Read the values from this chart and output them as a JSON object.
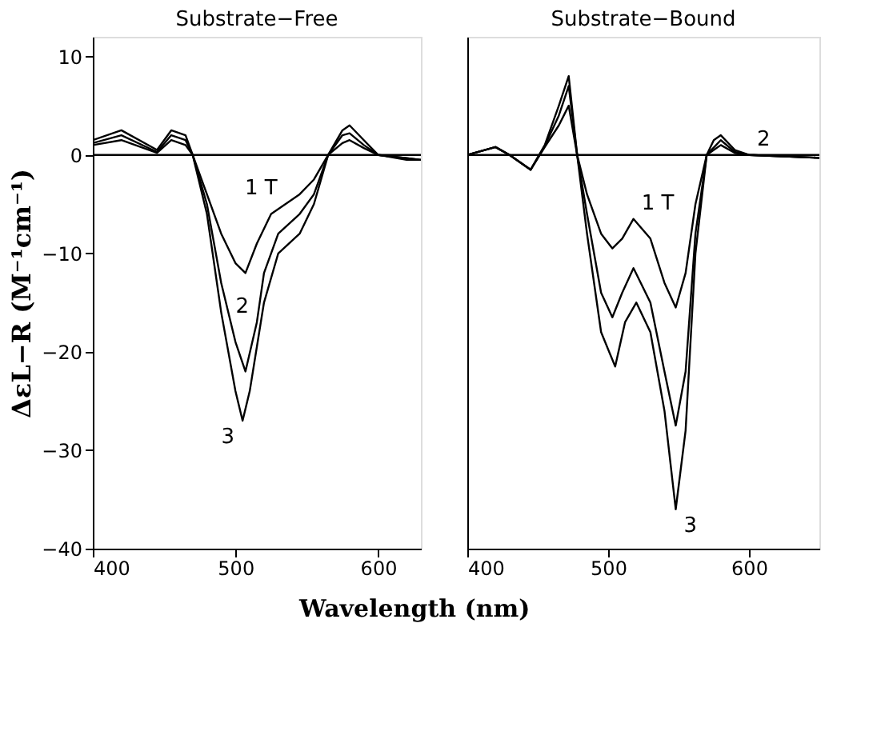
{
  "chart_data": [
    {
      "type": "line",
      "title": "Substrate−Free",
      "xlabel": "Wavelength (nm)",
      "ylabel": "ΔεL−R (M⁻¹cm⁻¹)",
      "xlim": [
        400,
        630
      ],
      "xticks": [
        400,
        500,
        600
      ],
      "ylim": [
        -40,
        12
      ],
      "yticks": [
        -40,
        -30,
        -20,
        -10,
        0,
        10
      ],
      "grid": false,
      "legend": false,
      "series": [
        {
          "name": "1 T",
          "color": "#000000",
          "x": [
            400,
            420,
            445,
            455,
            465,
            470,
            480,
            490,
            500,
            507,
            515,
            525,
            535,
            545,
            555,
            565,
            575,
            580,
            590,
            600,
            630
          ],
          "values": [
            1,
            1.5,
            0.2,
            1.5,
            1,
            0,
            -4,
            -8,
            -11,
            -12,
            -9,
            -6,
            -5,
            -4,
            -2.5,
            0,
            1.2,
            1.5,
            0.7,
            0,
            -0.5
          ]
        },
        {
          "name": "2",
          "color": "#000000",
          "x": [
            400,
            420,
            445,
            455,
            465,
            470,
            480,
            490,
            500,
            507,
            515,
            520,
            530,
            545,
            555,
            565,
            575,
            580,
            590,
            600,
            630
          ],
          "values": [
            1.2,
            2,
            0.3,
            2,
            1.5,
            0,
            -5,
            -13,
            -19,
            -22,
            -17,
            -12,
            -8,
            -6,
            -4,
            0,
            2,
            2.2,
            1,
            0,
            -0.5
          ]
        },
        {
          "name": "3",
          "color": "#000000",
          "x": [
            400,
            420,
            445,
            455,
            465,
            470,
            480,
            490,
            500,
            505,
            510,
            520,
            530,
            545,
            555,
            565,
            575,
            580,
            590,
            600,
            620,
            630
          ],
          "values": [
            1.5,
            2.5,
            0.5,
            2.5,
            2,
            0,
            -6,
            -16,
            -24,
            -27,
            -24,
            -15,
            -10,
            -8,
            -5,
            0,
            2.5,
            3,
            1.5,
            0,
            -0.5,
            -0.5
          ]
        }
      ],
      "ref_lines": [
        {
          "axis": "y",
          "value": 0,
          "color": "#000000"
        }
      ]
    },
    {
      "type": "line",
      "title": "Substrate−Bound",
      "xlim": [
        400,
        650
      ],
      "xticks": [
        400,
        500,
        600
      ],
      "ylim": [
        -40,
        12
      ],
      "yticks": [
        -40,
        -30,
        -20,
        -10,
        0,
        10
      ],
      "grid": false,
      "legend": false,
      "tick_labels": "x",
      "series": [
        {
          "name": "1 T",
          "color": "#000000",
          "x": [
            400,
            420,
            430,
            445,
            455,
            465,
            472,
            478,
            485,
            495,
            503,
            510,
            518,
            530,
            540,
            548,
            555,
            562,
            570,
            580,
            590,
            600,
            650
          ],
          "values": [
            0,
            0.8,
            0,
            -1.5,
            0.8,
            3,
            5,
            0,
            -4,
            -8,
            -9.5,
            -8.5,
            -6.5,
            -8.5,
            -13,
            -15.5,
            -12,
            -5,
            0,
            1,
            0.2,
            0,
            -0.3
          ]
        },
        {
          "name": "2",
          "color": "#000000",
          "x": [
            400,
            420,
            430,
            445,
            455,
            465,
            472,
            478,
            485,
            495,
            503,
            510,
            518,
            530,
            540,
            548,
            555,
            562,
            570,
            580,
            590,
            600,
            650
          ],
          "values": [
            0,
            0.8,
            0,
            -1.5,
            0.9,
            4,
            7,
            0,
            -6,
            -14,
            -16.5,
            -14,
            -11.5,
            -15,
            -22,
            -27.5,
            -22,
            -8,
            0,
            1.5,
            0.3,
            0,
            -0.3
          ]
        },
        {
          "name": "3",
          "color": "#000000",
          "x": [
            400,
            420,
            430,
            445,
            455,
            465,
            472,
            478,
            485,
            495,
            505,
            512,
            520,
            530,
            540,
            548,
            555,
            562,
            570,
            575,
            580,
            590,
            600,
            650
          ],
          "values": [
            0,
            0.8,
            0,
            -1.5,
            1,
            5,
            8,
            0,
            -8,
            -18,
            -21.5,
            -17,
            -15,
            -18,
            -26,
            -36,
            -28,
            -10,
            0,
            1.5,
            2,
            0.5,
            0,
            -0.3
          ]
        }
      ],
      "ref_lines": [
        {
          "axis": "y",
          "value": 0,
          "color": "#000000"
        }
      ]
    }
  ]
}
